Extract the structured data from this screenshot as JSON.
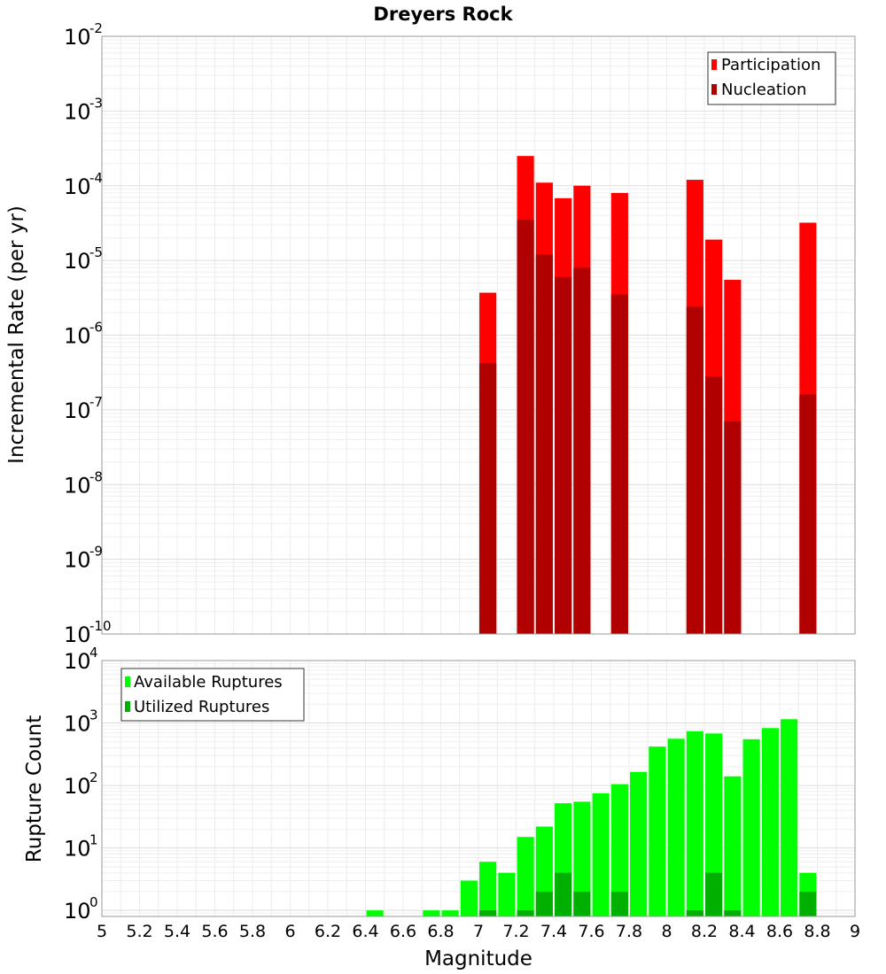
{
  "chart_data": [
    {
      "type": "bar",
      "id": "top",
      "title": "Dreyers Rock",
      "ylabel": "Incremental Rate (per yr)",
      "xlabel": "",
      "yscale": "log",
      "ylim": [
        1e-10,
        0.01
      ],
      "xlim": [
        5,
        9
      ],
      "bar_width": 0.09,
      "y_ticks": [
        {
          "base": "10",
          "exp": "-10",
          "value": 1e-10
        },
        {
          "base": "10",
          "exp": "-9",
          "value": 1e-09
        },
        {
          "base": "10",
          "exp": "-8",
          "value": 1e-08
        },
        {
          "base": "10",
          "exp": "-7",
          "value": 1e-07
        },
        {
          "base": "10",
          "exp": "-6",
          "value": 1e-06
        },
        {
          "base": "10",
          "exp": "-5",
          "value": 1e-05
        },
        {
          "base": "10",
          "exp": "-4",
          "value": 0.0001
        },
        {
          "base": "10",
          "exp": "-3",
          "value": 0.001
        },
        {
          "base": "10",
          "exp": "-2",
          "value": 0.01
        }
      ],
      "legend": {
        "position": "top-right",
        "entries": [
          "Participation",
          "Nucleation"
        ]
      },
      "series": [
        {
          "name": "Participation",
          "color": "#ff0000",
          "points": [
            {
              "x": 7.05,
              "y": 3.7e-06
            },
            {
              "x": 7.25,
              "y": 0.00025
            },
            {
              "x": 7.35,
              "y": 0.00011
            },
            {
              "x": 7.45,
              "y": 6.8e-05
            },
            {
              "x": 7.55,
              "y": 0.0001
            },
            {
              "x": 7.75,
              "y": 8e-05
            },
            {
              "x": 8.15,
              "y": 0.00012
            },
            {
              "x": 8.25,
              "y": 1.9e-05
            },
            {
              "x": 8.35,
              "y": 5.5e-06
            },
            {
              "x": 8.75,
              "y": 3.2e-05
            }
          ]
        },
        {
          "name": "Nucleation",
          "color": "#b00000",
          "points": [
            {
              "x": 7.05,
              "y": 4.2e-07
            },
            {
              "x": 7.25,
              "y": 3.5e-05
            },
            {
              "x": 7.35,
              "y": 1.2e-05
            },
            {
              "x": 7.45,
              "y": 6e-06
            },
            {
              "x": 7.55,
              "y": 8e-06
            },
            {
              "x": 7.75,
              "y": 3.5e-06
            },
            {
              "x": 8.15,
              "y": 2.4e-06
            },
            {
              "x": 8.25,
              "y": 2.8e-07
            },
            {
              "x": 8.35,
              "y": 7e-08
            },
            {
              "x": 8.75,
              "y": 1.6e-07
            }
          ]
        }
      ]
    },
    {
      "type": "bar",
      "id": "bottom",
      "title": "",
      "ylabel": "Rupture Count",
      "xlabel": "Magnitude",
      "yscale": "log",
      "ylim": [
        0.8,
        10000
      ],
      "xlim": [
        5,
        9
      ],
      "bar_width": 0.09,
      "x_ticks": [
        "5",
        "5.2",
        "5.4",
        "5.6",
        "5.8",
        "6",
        "6.2",
        "6.4",
        "6.6",
        "6.8",
        "7",
        "7.2",
        "7.4",
        "7.6",
        "7.8",
        "8",
        "8.2",
        "8.4",
        "8.6",
        "8.8",
        "9"
      ],
      "y_ticks": [
        {
          "base": "10",
          "exp": "0",
          "value": 1
        },
        {
          "base": "10",
          "exp": "1",
          "value": 10
        },
        {
          "base": "10",
          "exp": "2",
          "value": 100
        },
        {
          "base": "10",
          "exp": "3",
          "value": 1000
        },
        {
          "base": "10",
          "exp": "4",
          "value": 10000
        }
      ],
      "legend": {
        "position": "top-left",
        "entries": [
          "Available Ruptures",
          "Utilized Ruptures"
        ]
      },
      "series": [
        {
          "name": "Available Ruptures",
          "color": "#00ff00",
          "points": [
            {
              "x": 6.45,
              "y": 1
            },
            {
              "x": 6.75,
              "y": 1
            },
            {
              "x": 6.85,
              "y": 1
            },
            {
              "x": 6.95,
              "y": 3
            },
            {
              "x": 7.05,
              "y": 6
            },
            {
              "x": 7.15,
              "y": 4
            },
            {
              "x": 7.25,
              "y": 15
            },
            {
              "x": 7.35,
              "y": 22
            },
            {
              "x": 7.45,
              "y": 52
            },
            {
              "x": 7.55,
              "y": 55
            },
            {
              "x": 7.65,
              "y": 75
            },
            {
              "x": 7.75,
              "y": 105
            },
            {
              "x": 7.85,
              "y": 165
            },
            {
              "x": 7.95,
              "y": 420
            },
            {
              "x": 8.05,
              "y": 560
            },
            {
              "x": 8.15,
              "y": 740
            },
            {
              "x": 8.25,
              "y": 680
            },
            {
              "x": 8.35,
              "y": 140
            },
            {
              "x": 8.45,
              "y": 550
            },
            {
              "x": 8.55,
              "y": 830
            },
            {
              "x": 8.65,
              "y": 1150
            },
            {
              "x": 8.75,
              "y": 4
            }
          ]
        },
        {
          "name": "Utilized Ruptures",
          "color": "#00b000",
          "points": [
            {
              "x": 7.05,
              "y": 1
            },
            {
              "x": 7.25,
              "y": 1
            },
            {
              "x": 7.35,
              "y": 2
            },
            {
              "x": 7.45,
              "y": 4
            },
            {
              "x": 7.55,
              "y": 2
            },
            {
              "x": 7.75,
              "y": 2
            },
            {
              "x": 8.15,
              "y": 1
            },
            {
              "x": 8.25,
              "y": 4
            },
            {
              "x": 8.35,
              "y": 1
            },
            {
              "x": 8.75,
              "y": 2
            }
          ]
        }
      ]
    }
  ]
}
